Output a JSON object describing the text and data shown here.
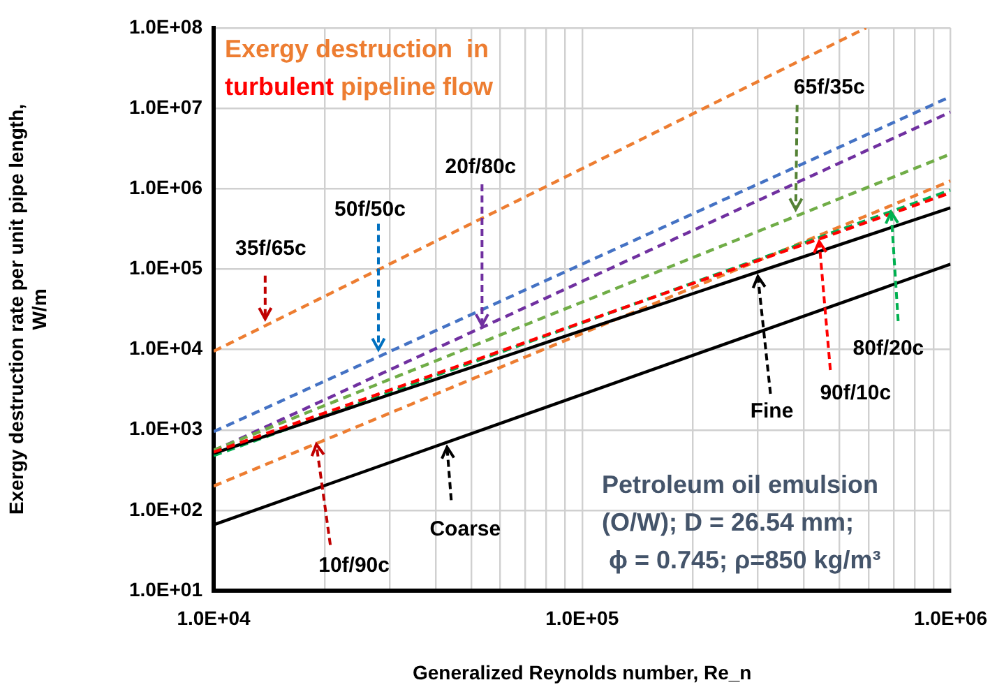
{
  "chart_data": {
    "type": "line",
    "title": "Exergy destruction  in turbulent pipeline flow",
    "xlabel": "Generalized Reynolds number, Re_n",
    "ylabel": "Exergy destruction rate per unit pipe length, W/m",
    "log": "xy",
    "grid": true,
    "legend": false,
    "marker": "none",
    "xlim": [
      10000,
      1000000
    ],
    "xticks": [
      {
        "value": 10000,
        "label": "1.0E+04"
      },
      {
        "value": 20000,
        "label": null
      },
      {
        "value": 30000,
        "label": null
      },
      {
        "value": 40000,
        "label": null
      },
      {
        "value": 50000,
        "label": null
      },
      {
        "value": 60000,
        "label": null
      },
      {
        "value": 70000,
        "label": null
      },
      {
        "value": 80000,
        "label": null
      },
      {
        "value": 90000,
        "label": null
      },
      {
        "value": 100000,
        "label": "1.0E+05"
      },
      {
        "value": 200000,
        "label": null
      },
      {
        "value": 300000,
        "label": null
      },
      {
        "value": 400000,
        "label": null
      },
      {
        "value": 500000,
        "label": null
      },
      {
        "value": 600000,
        "label": null
      },
      {
        "value": 700000,
        "label": null
      },
      {
        "value": 800000,
        "label": null
      },
      {
        "value": 900000,
        "label": null
      },
      {
        "value": 1000000,
        "label": "1.0E+06"
      }
    ],
    "ylim": [
      10,
      100000000
    ],
    "yticks": [
      {
        "value": 10,
        "label": "1.0E+01"
      },
      {
        "value": 100,
        "label": "1.0E+02"
      },
      {
        "value": 1000,
        "label": "1.0E+03"
      },
      {
        "value": 10000,
        "label": "1.0E+04"
      },
      {
        "value": 100000,
        "label": "1.0E+05"
      },
      {
        "value": 1000000,
        "label": "1.0E+06"
      },
      {
        "value": 10000000,
        "label": "1.0E+07"
      },
      {
        "value": 100000000,
        "label": "1.0E+08"
      }
    ],
    "series": [
      {
        "color": "#ed7d31",
        "line_style": "dashed",
        "x": [
          10000,
          590000
        ],
        "values": [
          9500,
          100000000
        ]
      },
      {
        "color": "#4472c4",
        "line_style": "dashed",
        "x": [
          10000,
          1000000
        ],
        "values": [
          950,
          14000000
        ]
      },
      {
        "color": "#7030a0",
        "line_style": "dashed",
        "x": [
          10000,
          1000000
        ],
        "values": [
          550,
          9000000
        ]
      },
      {
        "color": "#70ad47",
        "line_style": "dashed",
        "x": [
          10000,
          1000000
        ],
        "values": [
          560,
          2700000
        ]
      },
      {
        "color": "#ed7d31",
        "line_style": "dashed",
        "x": [
          10000,
          1000000
        ],
        "values": [
          200,
          1250000
        ]
      },
      {
        "color": "#00b050",
        "line_style": "dashed",
        "x": [
          10000,
          1000000
        ],
        "values": [
          480,
          960000
        ]
      },
      {
        "color": "#000000",
        "line_style": "solid",
        "x": [
          10000,
          1000000
        ],
        "values": [
          510,
          580000
        ]
      },
      {
        "color": "#ff0000",
        "line_style": "dashed",
        "x": [
          10000,
          1000000
        ],
        "values": [
          530,
          890000
        ]
      },
      {
        "color": "#000000",
        "line_style": "solid",
        "x": [
          10000,
          1000000
        ],
        "values": [
          66,
          115000
        ]
      }
    ],
    "annotations": [
      {
        "text": "35f/65c",
        "x": 13800,
        "y": 24000
      },
      {
        "text": "50f/50c",
        "x": 28000,
        "y": 10000
      },
      {
        "text": "20f/80c",
        "x": 53500,
        "y": 20000
      },
      {
        "text": "65f/35c",
        "x": 380000,
        "y": 550000
      },
      {
        "text": "90f/10c",
        "x": 440000,
        "y": 220000
      },
      {
        "text": "80f/20c",
        "x": 690000,
        "y": 510000
      },
      {
        "text": "Fine",
        "x": 300000,
        "y": 81000
      },
      {
        "text": "Coarse",
        "x": 43000,
        "y": 610
      },
      {
        "text": "10f/90c",
        "x": 19000,
        "y": 660
      },
      "Petroleum oil emulsion\n(O/W); D = 26.54 mm;\n ϕ = 0.745; ρ=850 kg/m³"
    ]
  }
}
